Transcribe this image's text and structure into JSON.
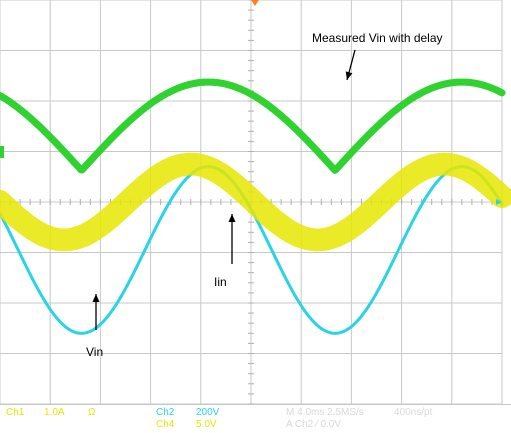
{
  "chart_data": {
    "type": "line",
    "annotations": [
      {
        "name": "measured-vin-label",
        "text": "Measured Vin with delay"
      },
      {
        "name": "iin-label",
        "text": "Iin"
      },
      {
        "name": "vin-label",
        "text": "Vin"
      }
    ],
    "series": [
      {
        "color": "#2ad3e6",
        "kind": "sine",
        "amplitude_div": 1.65,
        "offset_div": -0.95,
        "period_div": 5.05,
        "peak_x_div": 4.15,
        "thickness_div": 0.06
      },
      {
        "color": "#2fd22f",
        "kind": "rectified",
        "amplitude_div": 1.75,
        "offset_div": 1.5,
        "period_div": 5.05,
        "peak_x_div": 4.15,
        "thickness_div": 0.14
      },
      {
        "color": "#e6e600",
        "kind": "sine",
        "amplitude_div": 0.75,
        "offset_div": 0.0,
        "period_div": 5.05,
        "peak_x_div": 3.8,
        "thickness_div": 0.45
      }
    ],
    "grid": true,
    "divisions": {
      "x": 10,
      "y": 8
    },
    "status": {
      "ch1_label": "Ch1",
      "ch1_scale": "1.0A",
      "ch1_mode": "Ω",
      "ch2_label": "Ch2",
      "ch2_scale": "200V",
      "ch4_label": "Ch4",
      "ch4_scale": "5.0V",
      "timebase": "M 4.0ms 2.5MS/s",
      "sample_interval": "400ns/pt",
      "trigger": "A  Ch2  ⁄  0.0V"
    }
  }
}
